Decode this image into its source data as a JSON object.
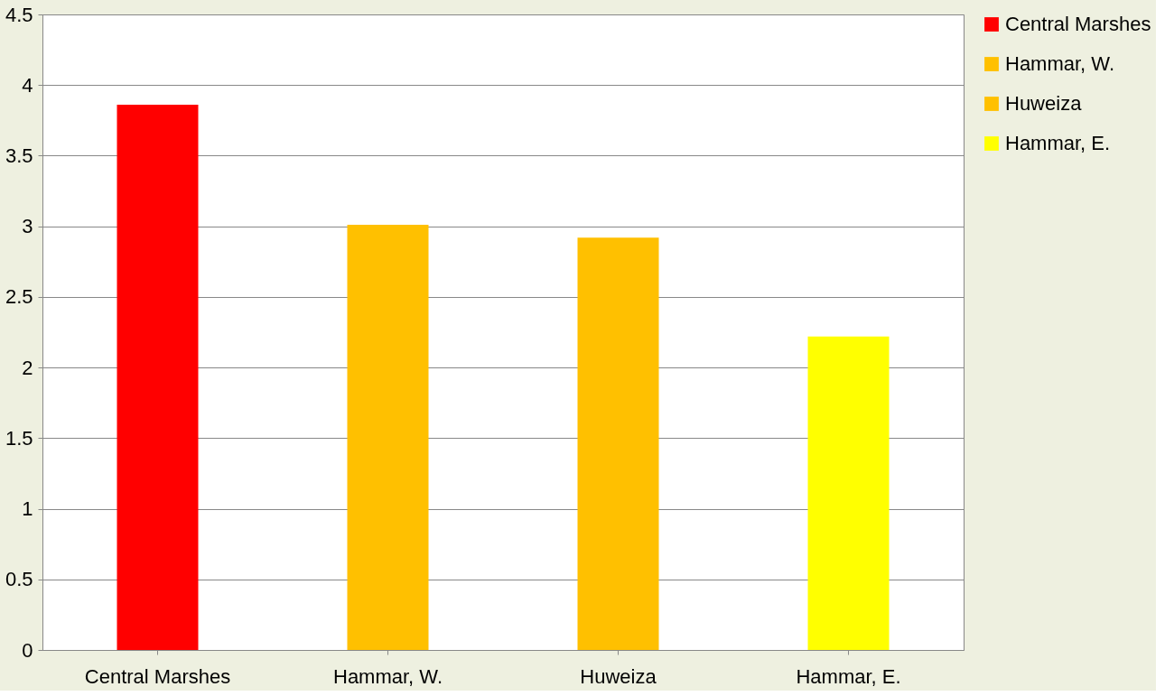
{
  "chart_data": {
    "type": "bar",
    "categories": [
      "Central Marshes",
      "Hammar, W.",
      "Huweiza",
      "Hammar, E."
    ],
    "series": [
      {
        "name": "Central Marshes",
        "color": "#ff0000",
        "values": [
          3.86,
          null,
          null,
          null
        ]
      },
      {
        "name": "Hammar, W.",
        "color": "#ffc000",
        "values": [
          null,
          3.01,
          null,
          null
        ]
      },
      {
        "name": "Huweiza",
        "color": "#ffc000",
        "values": [
          null,
          null,
          2.92,
          null
        ]
      },
      {
        "name": "Hammar, E.",
        "color": "#ffff00",
        "values": [
          null,
          null,
          null,
          2.22
        ]
      }
    ],
    "ylim": [
      0,
      4.5
    ],
    "yticks": [
      0,
      0.5,
      1,
      1.5,
      2,
      2.5,
      3,
      3.5,
      4,
      4.5
    ],
    "grid": "y",
    "legend": "right"
  }
}
